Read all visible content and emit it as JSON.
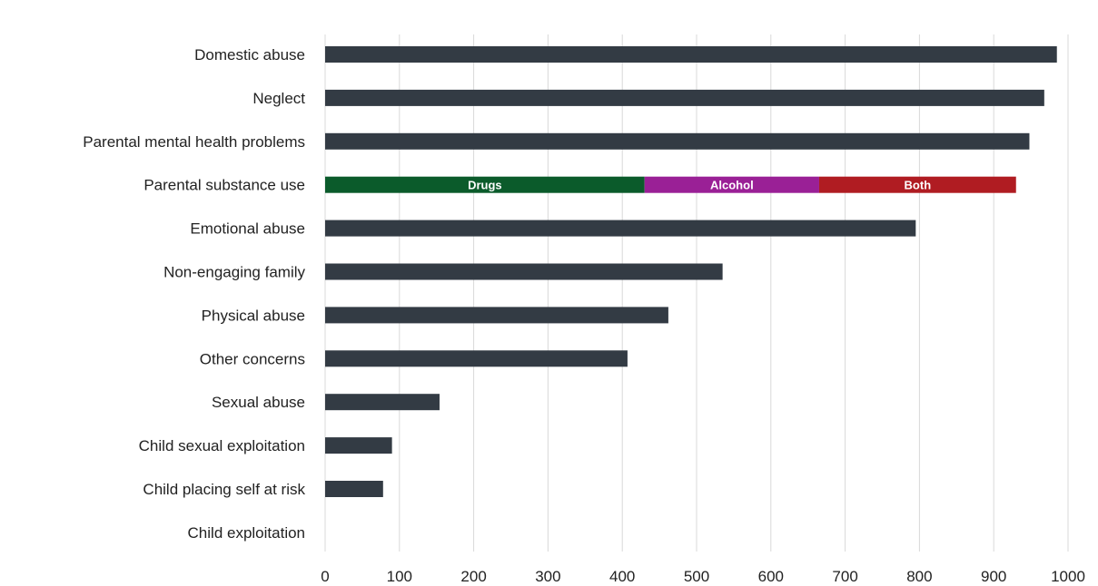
{
  "chart_data": {
    "type": "bar",
    "orientation": "horizontal",
    "stacked_segments": true,
    "categories": [
      "Domestic abuse",
      "Neglect",
      "Parental mental health problems",
      "Parental substance use",
      "Emotional abuse",
      "Non-engaging family",
      "Physical abuse",
      "Other concerns",
      "Sexual abuse",
      "Child sexual exploitation",
      "Child placing self at risk",
      "Child exploitation"
    ],
    "values": [
      985,
      968,
      948,
      930,
      795,
      535,
      462,
      407,
      154,
      90,
      78,
      0
    ],
    "bar_color": "#333b44",
    "segmented_bars": [
      {
        "category": "Parental substance use",
        "segments": [
          {
            "name": "Drugs",
            "value": 430,
            "color": "#0b5b2b"
          },
          {
            "name": "Alcohol",
            "value": 235,
            "color": "#9a2096"
          },
          {
            "name": "Both",
            "value": 265,
            "color": "#b01c22"
          }
        ]
      }
    ],
    "xlim": [
      0,
      1000
    ],
    "xticks": [
      "0",
      "100",
      "200",
      "300",
      "400",
      "500",
      "600",
      "700",
      "800",
      "900",
      "1000"
    ],
    "xlabel": "",
    "ylabel": "",
    "grid": "vertical"
  }
}
